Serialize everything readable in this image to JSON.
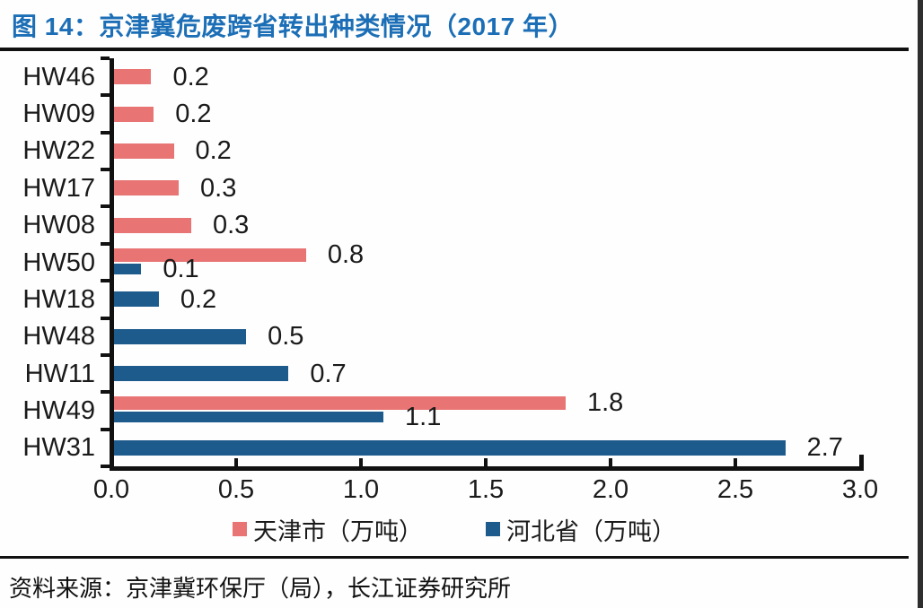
{
  "figure": {
    "title": "图 14：京津冀危废跨省转出种类情况（2017 年）",
    "source": "资料来源：京津冀环保厅（局），长江证券研究所"
  },
  "colors": {
    "title_blue": "#1C6FB6",
    "axis_black": "#111111",
    "text_black": "#1A1A1A",
    "background": "#FEFEFE",
    "right_edge": "#2E2E2E"
  },
  "chart_data": {
    "type": "bar",
    "orientation": "horizontal",
    "title": "图 14：京津冀危废跨省转出种类情况（2017 年）",
    "xlabel": "",
    "ylabel": "",
    "unit": "万吨",
    "categories": [
      "HW46",
      "HW09",
      "HW22",
      "HW17",
      "HW08",
      "HW50",
      "HW18",
      "HW48",
      "HW11",
      "HW49",
      "HW31"
    ],
    "series": [
      {
        "key": "tianjin",
        "name": "天津市（万吨）",
        "color": "#E87474",
        "values": [
          0.2,
          0.2,
          0.2,
          0.3,
          0.3,
          0.8,
          null,
          null,
          null,
          1.8,
          null
        ],
        "bar_extents": [
          0.16,
          0.17,
          0.25,
          0.27,
          0.32,
          0.78,
          null,
          null,
          null,
          1.82,
          null
        ]
      },
      {
        "key": "hebei",
        "name": "河北省（万吨）",
        "color": "#1E5B8D",
        "values": [
          null,
          null,
          null,
          null,
          null,
          0.1,
          0.2,
          0.5,
          0.7,
          1.1,
          2.7
        ],
        "bar_extents": [
          null,
          null,
          null,
          null,
          null,
          0.12,
          0.19,
          0.54,
          0.71,
          1.09,
          2.7
        ]
      }
    ],
    "xlim": [
      0,
      3
    ],
    "xticks": [
      "0.0",
      "0.5",
      "1.0",
      "1.5",
      "2.0",
      "2.5",
      "3.0"
    ],
    "value_labels": true,
    "grid": false,
    "legend_position": "bottom"
  }
}
